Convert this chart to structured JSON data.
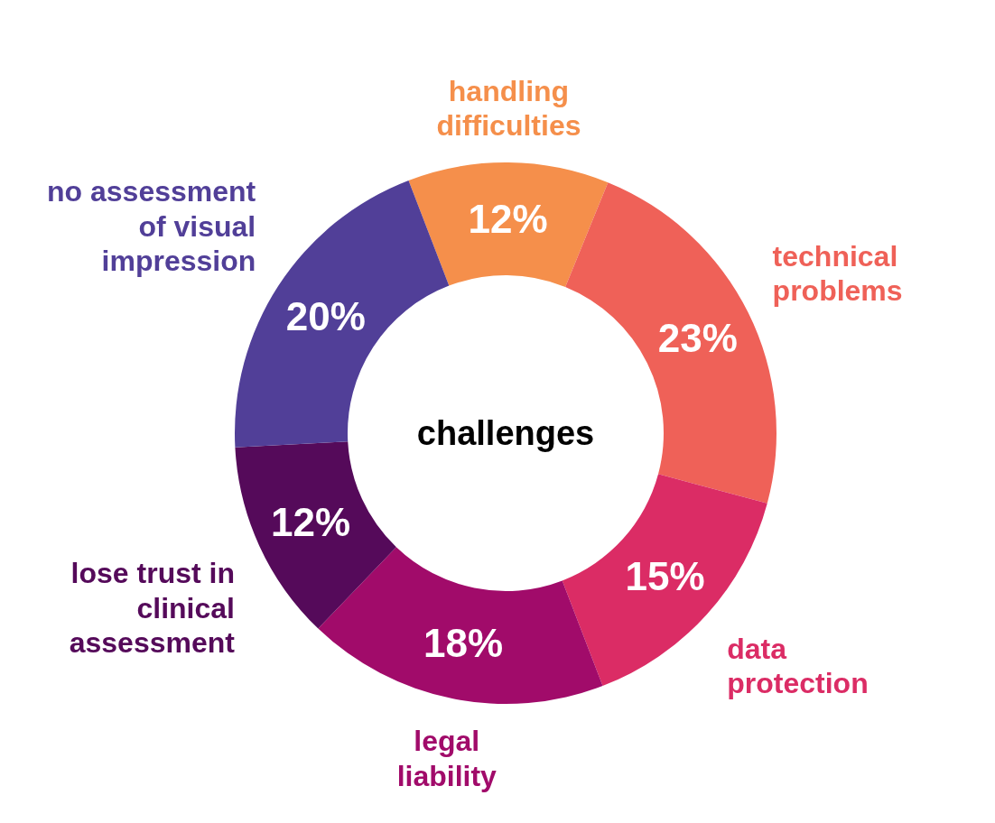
{
  "chart_data": {
    "type": "donut",
    "title": "challenges",
    "categories": [
      "handling difficulties",
      "technical problems",
      "data protection",
      "legal liability",
      "lose trust in clinical assessment",
      "no assessment of visual impression"
    ],
    "values": [
      12,
      23,
      15,
      18,
      12,
      20
    ],
    "value_labels": [
      "12%",
      "23%",
      "15%",
      "18%",
      "12%",
      "20%"
    ],
    "colors": [
      "#f58f4b",
      "#ef6158",
      "#db2c65",
      "#a10b6a",
      "#550a5a",
      "#513f98"
    ]
  }
}
